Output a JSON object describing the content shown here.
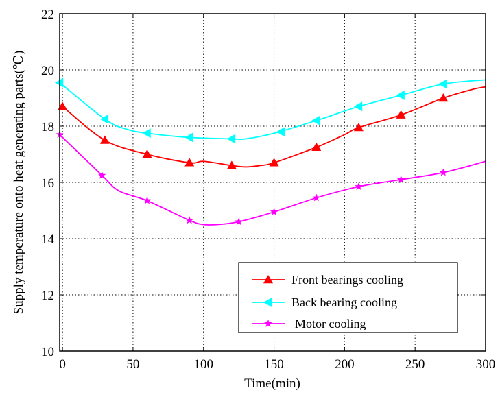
{
  "chart_data": {
    "type": "line",
    "xlabel": "Time(min)",
    "ylabel": "Supply temperature onto heat generating parts(℃)",
    "xlim": [
      -2,
      300
    ],
    "ylim": [
      10,
      22
    ],
    "xticks": [
      0,
      50,
      100,
      150,
      200,
      250,
      300
    ],
    "yticks": [
      10,
      12,
      14,
      16,
      18,
      20,
      22
    ],
    "grid": true,
    "legend_position": "bottom-right",
    "series": [
      {
        "name": "Front bearings cooling",
        "color": "#ff0000",
        "marker": "triangle-up",
        "x": [
          0,
          30,
          60,
          90,
          100,
          120,
          130,
          140,
          150,
          180,
          200,
          210,
          240,
          270,
          290,
          300
        ],
        "y": [
          18.7,
          17.5,
          17.0,
          16.7,
          16.75,
          16.6,
          16.55,
          16.6,
          16.7,
          17.25,
          17.7,
          17.95,
          18.4,
          19.0,
          19.3,
          19.4
        ],
        "marker_x": [
          0,
          30,
          60,
          90,
          120,
          150,
          180,
          210,
          240,
          270
        ],
        "marker_y": [
          18.7,
          17.5,
          17.0,
          16.7,
          16.6,
          16.7,
          17.25,
          17.95,
          18.4,
          19.0
        ]
      },
      {
        "name": "Back bearing cooling",
        "color": "#00ffff",
        "marker": "triangle-left",
        "x": [
          -2,
          30,
          45,
          60,
          90,
          120,
          130,
          150,
          180,
          210,
          240,
          270,
          300
        ],
        "y": [
          19.55,
          18.25,
          17.9,
          17.75,
          17.6,
          17.55,
          17.55,
          17.75,
          18.2,
          18.7,
          19.1,
          19.5,
          19.65
        ],
        "marker_x": [
          -2,
          30,
          60,
          90,
          120,
          155,
          180,
          210,
          240,
          270
        ],
        "marker_y": [
          19.55,
          18.25,
          17.75,
          17.6,
          17.55,
          17.8,
          18.2,
          18.7,
          19.1,
          19.5
        ]
      },
      {
        "name": "Motor cooling",
        "color": "#ff00ff",
        "marker": "star",
        "x": [
          -2,
          28,
          40,
          60,
          90,
          100,
          110,
          125,
          150,
          180,
          210,
          240,
          270,
          300
        ],
        "y": [
          17.7,
          16.25,
          15.7,
          15.35,
          14.65,
          14.5,
          14.5,
          14.6,
          14.95,
          15.45,
          15.85,
          16.1,
          16.35,
          16.75
        ],
        "marker_x": [
          -2,
          28,
          60,
          90,
          125,
          150,
          180,
          210,
          240,
          270
        ],
        "marker_y": [
          17.7,
          16.25,
          15.35,
          14.65,
          14.6,
          14.95,
          15.45,
          15.85,
          16.1,
          16.35
        ]
      }
    ]
  }
}
